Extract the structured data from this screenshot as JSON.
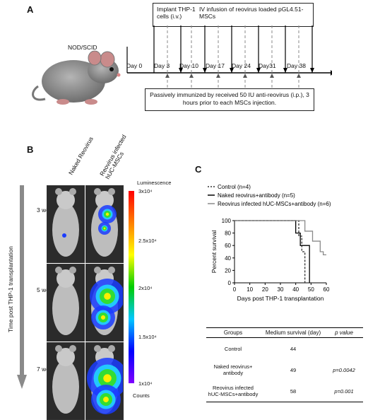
{
  "panelA": {
    "letter": "A",
    "mouse_label": "NOD/SCID",
    "implant_label": "Implant THP-1 cells (i.v.)",
    "infusion_label": "IV infusion of reovirus loaded pGL4.51-MSCs",
    "days": [
      "Day 0",
      "Day 3",
      "Day 10",
      "Day 17",
      "Day 24",
      "Day31",
      "Day 38"
    ],
    "immunization_note": "Passively immunized by received 50 IU anti-reovirus (i.p.), 3 hours prior to each MSCs injection."
  },
  "panelB": {
    "letter": "B",
    "col_labels": [
      "Naked Reovirus",
      "Reovirus infected hUC-MSCs"
    ],
    "row_labels": [
      "3 weeks",
      "5 weeks",
      "7 weeks"
    ],
    "time_axis_label": "Time post THP-1 transplantation",
    "colorbar": {
      "title": "Luminescence",
      "max": "3x10⁴",
      "tick_25": "2.5x10⁴",
      "tick_2": "2x10⁴",
      "tick_15": "1.5x10⁴",
      "min": "1x10⁴",
      "unit": "Counts"
    }
  },
  "panelC": {
    "letter": "C",
    "chart_data": {
      "type": "line",
      "xlabel": "Days post THP-1 transplantation",
      "ylabel": "Percent survival",
      "xlim": [
        0,
        60
      ],
      "ylim": [
        0,
        100
      ],
      "xticks": [
        0,
        10,
        20,
        30,
        40,
        50,
        60
      ],
      "yticks": [
        0,
        20,
        40,
        60,
        80,
        100
      ],
      "series": [
        {
          "name": "Control (n=4)",
          "color": "#333333",
          "dash": true,
          "x": [
            0,
            42,
            42,
            44,
            44,
            46,
            46
          ],
          "y": [
            100,
            100,
            75,
            75,
            50,
            50,
            0
          ]
        },
        {
          "name": "Naked reovirus+antibody (n=5)",
          "color": "#000000",
          "dash": false,
          "x": [
            0,
            40,
            40,
            43,
            43,
            46,
            46,
            49,
            49
          ],
          "y": [
            100,
            100,
            80,
            80,
            60,
            60,
            60,
            60,
            0
          ]
        },
        {
          "name": "Reovirus infected hUC-MSCs+antibody (n=6)",
          "color": "#8a8a8a",
          "dash": false,
          "x": [
            0,
            46,
            46,
            51,
            51,
            56,
            56,
            58,
            58,
            60
          ],
          "y": [
            100,
            100,
            83,
            83,
            67,
            67,
            50,
            50,
            45,
            45
          ]
        }
      ]
    },
    "table": {
      "headers": [
        "Groups",
        "Medium survival (day)",
        "p value"
      ],
      "rows": [
        {
          "group": "Control",
          "group2": "",
          "median": "44",
          "p": ""
        },
        {
          "group": "Naked reovirus+",
          "group2": "antibody",
          "median": "49",
          "p": "p=0.0042"
        },
        {
          "group": "Reovirus infected",
          "group2": "hUC-MSCs+antibody",
          "median": "58",
          "p": "p=0.001"
        }
      ]
    }
  }
}
